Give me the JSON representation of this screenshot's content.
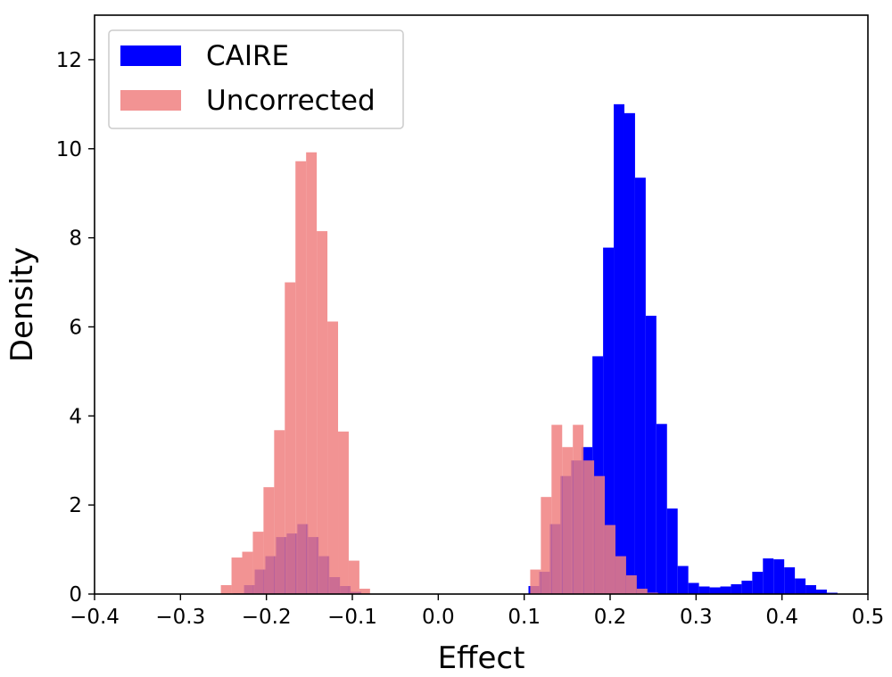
{
  "chart_data": {
    "type": "bar",
    "subtype": "overlapping-histogram",
    "title": "",
    "xlabel": "Effect",
    "ylabel": "Density",
    "xlim": [
      -0.4,
      0.5
    ],
    "ylim": [
      0,
      13
    ],
    "xticks": [
      "−0.4",
      "−0.3",
      "−0.2",
      "−0.1",
      "0.0",
      "0.1",
      "0.2",
      "0.3",
      "0.4",
      "0.5"
    ],
    "xtick_values": [
      -0.4,
      -0.3,
      -0.2,
      -0.1,
      0.0,
      0.1,
      0.2,
      0.3,
      0.4,
      0.5
    ],
    "yticks": [
      "0",
      "2",
      "4",
      "6",
      "8",
      "10",
      "12"
    ],
    "ytick_values": [
      0,
      2,
      4,
      6,
      8,
      10,
      12
    ],
    "grid": false,
    "legend_position": "top-left",
    "series": [
      {
        "name": "CAIRE",
        "color": "#0000ff",
        "alpha": 1.0,
        "bins": [
          [
            -0.2384,
            -0.226,
            0.02
          ],
          [
            -0.226,
            -0.2136,
            0.2
          ],
          [
            -0.2136,
            -0.2012,
            0.55
          ],
          [
            -0.2012,
            -0.1888,
            0.85
          ],
          [
            -0.1888,
            -0.1764,
            1.28
          ],
          [
            -0.1764,
            -0.164,
            1.36
          ],
          [
            -0.164,
            -0.1516,
            1.57
          ],
          [
            -0.1516,
            -0.1392,
            1.28
          ],
          [
            -0.1392,
            -0.1268,
            0.85
          ],
          [
            -0.1268,
            -0.1144,
            0.38
          ],
          [
            -0.1144,
            -0.102,
            0.18
          ],
          [
            -0.102,
            -0.0896,
            0.05
          ],
          [
            0.105,
            0.1174,
            0.18
          ],
          [
            0.1174,
            0.1298,
            0.5
          ],
          [
            0.1298,
            0.1422,
            1.57
          ],
          [
            0.1422,
            0.1546,
            2.65
          ],
          [
            0.1546,
            0.167,
            3.0
          ],
          [
            0.167,
            0.1794,
            3.3
          ],
          [
            0.1794,
            0.1918,
            5.34
          ],
          [
            0.1918,
            0.2042,
            7.78
          ],
          [
            0.2042,
            0.2166,
            11.0
          ],
          [
            0.2166,
            0.229,
            10.8
          ],
          [
            0.229,
            0.2414,
            9.35
          ],
          [
            0.2414,
            0.2538,
            6.25
          ],
          [
            0.2538,
            0.2662,
            3.82
          ],
          [
            0.2662,
            0.2786,
            1.92
          ],
          [
            0.2786,
            0.291,
            0.63
          ],
          [
            0.291,
            0.3034,
            0.25
          ],
          [
            0.3034,
            0.3158,
            0.17
          ],
          [
            0.3158,
            0.3282,
            0.15
          ],
          [
            0.3282,
            0.3406,
            0.17
          ],
          [
            0.3406,
            0.353,
            0.22
          ],
          [
            0.353,
            0.3654,
            0.3
          ],
          [
            0.3654,
            0.3778,
            0.5
          ],
          [
            0.3778,
            0.3902,
            0.8
          ],
          [
            0.3902,
            0.4026,
            0.78
          ],
          [
            0.4026,
            0.415,
            0.6
          ],
          [
            0.415,
            0.4274,
            0.35
          ],
          [
            0.4274,
            0.4398,
            0.2
          ],
          [
            0.4398,
            0.4522,
            0.1
          ],
          [
            0.4522,
            0.4646,
            0.03
          ]
        ]
      },
      {
        "name": "Uncorrected",
        "color": "#f08080",
        "alpha": 0.85,
        "bins": [
          [
            -0.253,
            -0.2406,
            0.2
          ],
          [
            -0.2406,
            -0.2282,
            0.82
          ],
          [
            -0.2282,
            -0.2158,
            0.95
          ],
          [
            -0.2158,
            -0.2034,
            1.4
          ],
          [
            -0.2034,
            -0.191,
            2.4
          ],
          [
            -0.191,
            -0.1786,
            3.68
          ],
          [
            -0.1786,
            -0.1662,
            7.0
          ],
          [
            -0.1662,
            -0.1538,
            9.72
          ],
          [
            -0.1538,
            -0.1414,
            9.92
          ],
          [
            -0.1414,
            -0.129,
            8.15
          ],
          [
            -0.129,
            -0.1166,
            6.12
          ],
          [
            -0.1166,
            -0.1042,
            3.65
          ],
          [
            -0.1042,
            -0.0918,
            0.75
          ],
          [
            -0.0918,
            -0.0794,
            0.12
          ],
          [
            0.107,
            0.1194,
            0.55
          ],
          [
            0.1194,
            0.1318,
            2.18
          ],
          [
            0.1318,
            0.1442,
            3.8
          ],
          [
            0.1442,
            0.1566,
            3.3
          ],
          [
            0.1566,
            0.169,
            3.8
          ],
          [
            0.169,
            0.1814,
            3.0
          ],
          [
            0.1814,
            0.1938,
            2.65
          ],
          [
            0.1938,
            0.2062,
            1.55
          ],
          [
            0.2062,
            0.2186,
            0.85
          ],
          [
            0.2186,
            0.231,
            0.42
          ],
          [
            0.231,
            0.2434,
            0.12
          ],
          [
            0.2434,
            0.2558,
            0.03
          ]
        ]
      }
    ]
  }
}
